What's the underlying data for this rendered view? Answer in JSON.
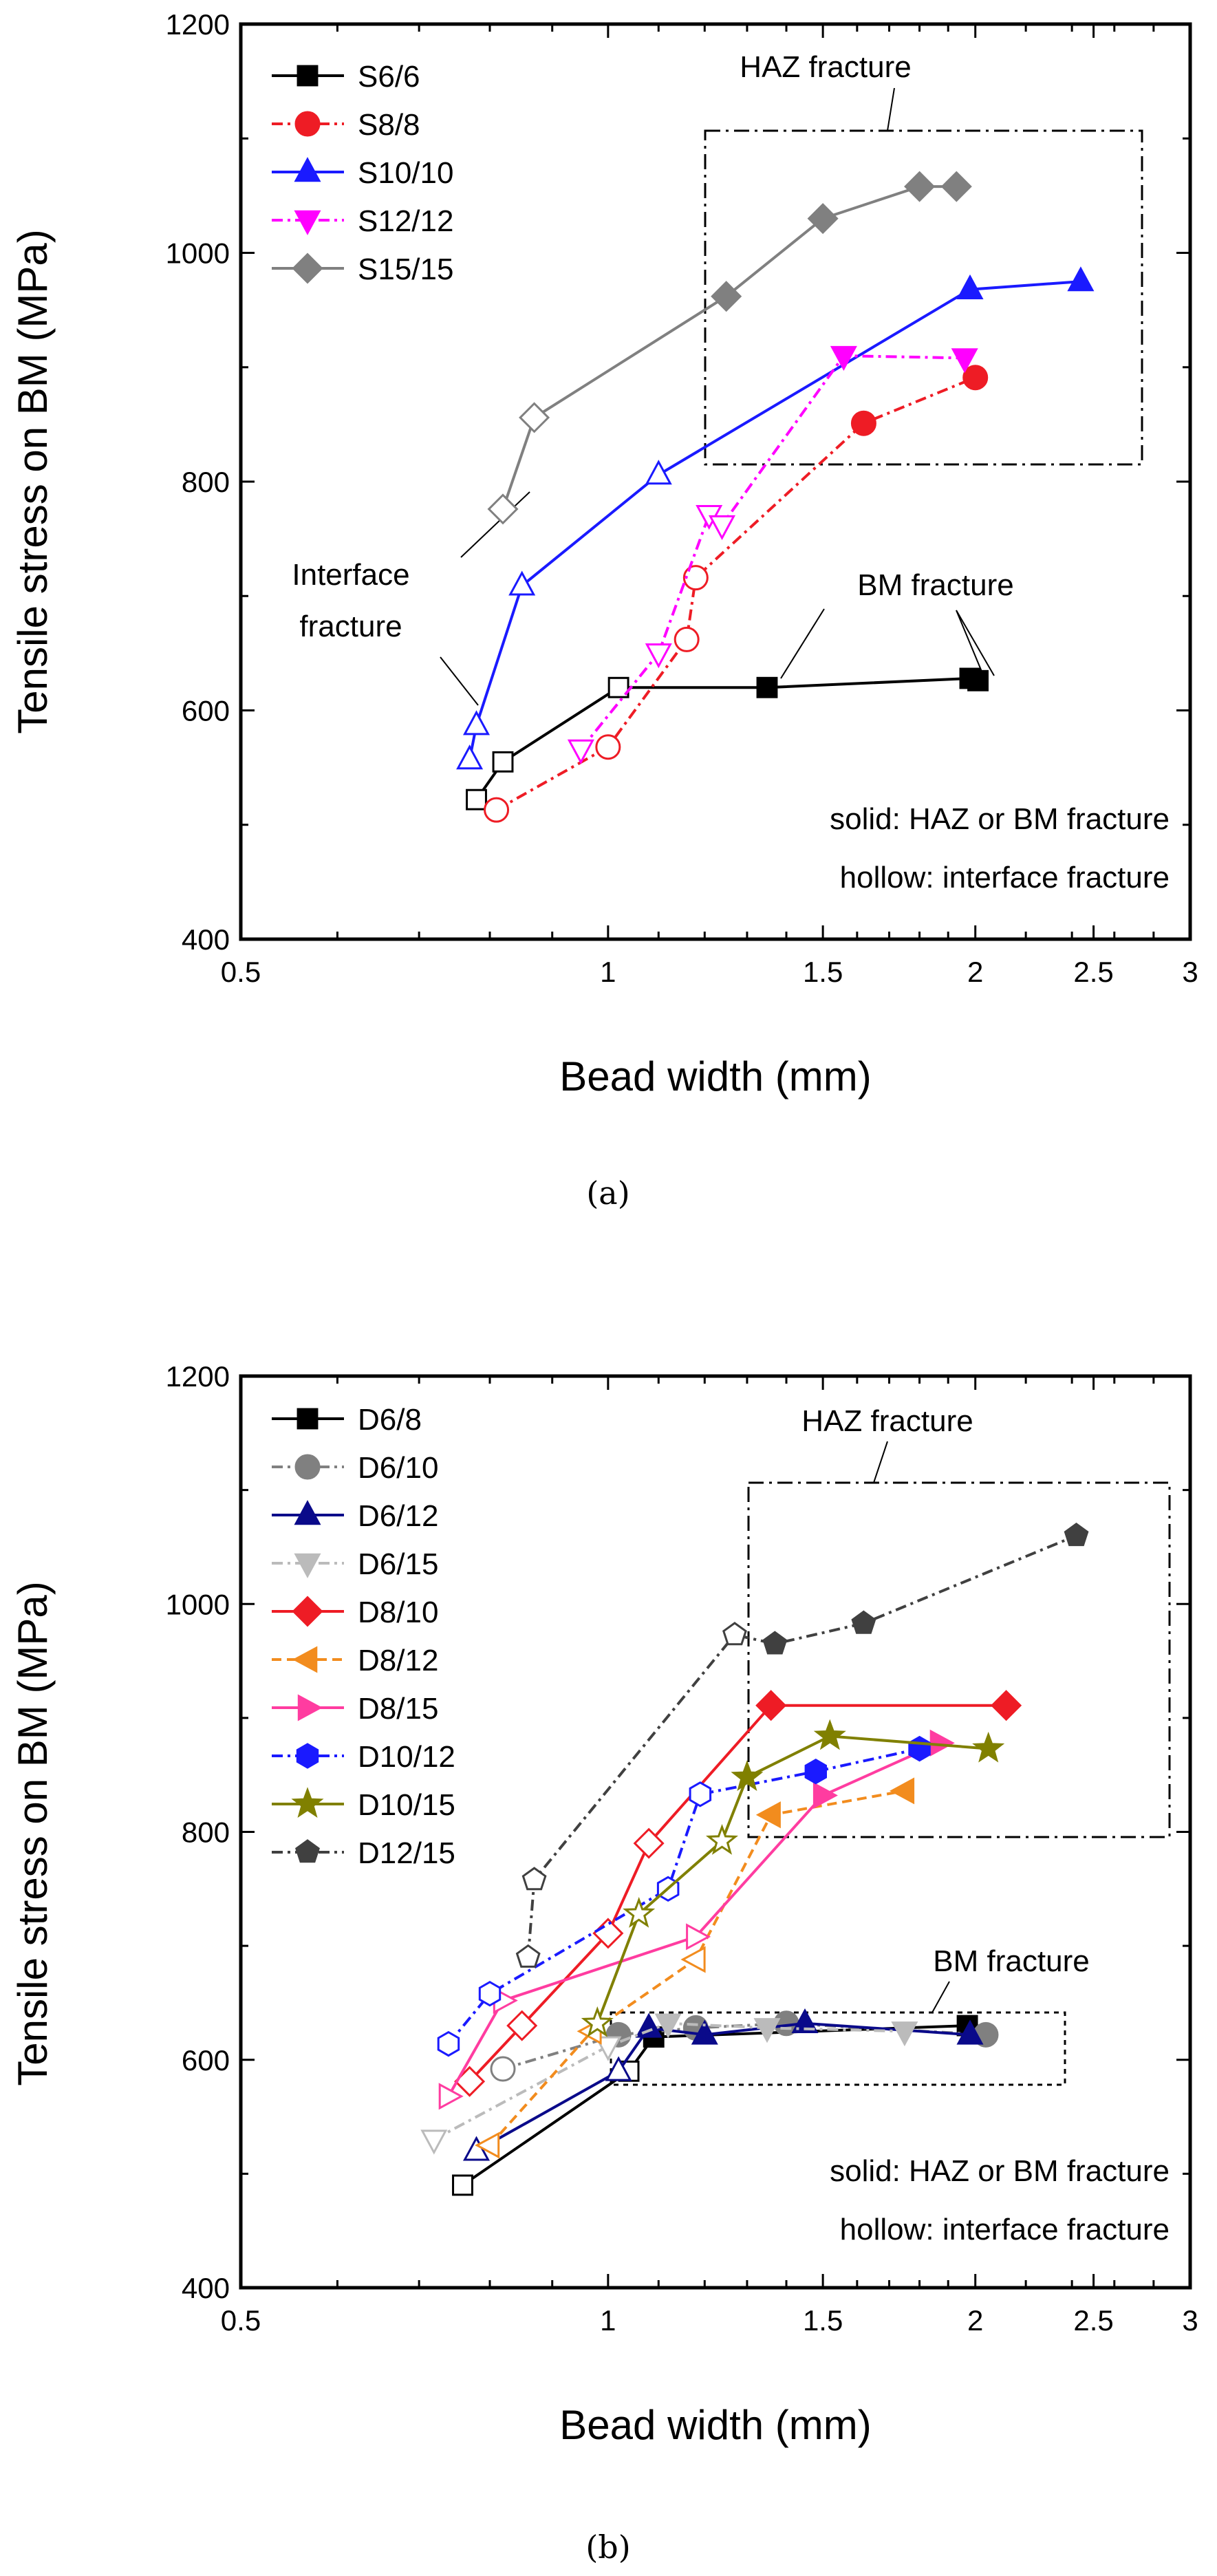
{
  "chart_data": [
    {
      "type": "line",
      "panel": "a",
      "caption": "(a)",
      "xlabel": "Bead width (mm)",
      "ylabel": "Tensile stress on BM (MPa)",
      "xscale": "log",
      "xlim": [
        0.5,
        3
      ],
      "ylim": [
        400,
        1200
      ],
      "xticks": [
        0.5,
        1,
        1.5,
        2,
        2.5,
        3
      ],
      "xtick_labels": [
        "0.5",
        "1",
        "1.5",
        "2",
        "2.5",
        "3"
      ],
      "yticks": [
        400,
        600,
        800,
        1000,
        1200
      ],
      "ytick_labels": [
        "400",
        "600",
        "800",
        "1000",
        "1200"
      ],
      "legend_position": "top-left",
      "series": [
        {
          "name": "S6/6",
          "color": "#000000",
          "marker": "square",
          "dash": "solid",
          "x": [
            0.78,
            0.82,
            1.02,
            1.35,
            1.98,
            2.01
          ],
          "y": [
            522,
            555,
            620,
            620,
            628,
            626
          ],
          "filled": [
            false,
            false,
            false,
            true,
            true,
            true
          ]
        },
        {
          "name": "S8/8",
          "color": "#ee1c25",
          "marker": "circle",
          "dash": "dashdot",
          "x": [
            0.81,
            1.0,
            1.16,
            1.18,
            1.62,
            2.0
          ],
          "y": [
            513,
            568,
            662,
            716,
            851,
            891
          ],
          "filled": [
            false,
            false,
            false,
            false,
            true,
            true
          ]
        },
        {
          "name": "S10/10",
          "color": "#1a1aff",
          "marker": "triangle-up",
          "dash": "solid",
          "x": [
            0.77,
            0.78,
            0.85,
            1.1,
            1.98,
            2.44
          ],
          "y": [
            557,
            587,
            709,
            806,
            968,
            975
          ],
          "filled": [
            false,
            false,
            false,
            false,
            true,
            true
          ]
        },
        {
          "name": "S12/12",
          "color": "#ff00ff",
          "marker": "triangle-down",
          "dash": "dashdot",
          "x": [
            0.95,
            1.1,
            1.21,
            1.24,
            1.56,
            1.96
          ],
          "y": [
            566,
            650,
            771,
            762,
            910,
            908
          ],
          "filled": [
            false,
            false,
            false,
            false,
            true,
            true
          ]
        },
        {
          "name": "S15/15",
          "color": "#808080",
          "marker": "diamond",
          "dash": "solid",
          "x": [
            0.82,
            0.87,
            1.25,
            1.5,
            1.8,
            1.93
          ],
          "y": [
            776,
            856,
            962,
            1030,
            1058,
            1058
          ],
          "filled": [
            false,
            false,
            true,
            true,
            true,
            true
          ]
        }
      ],
      "annotations": {
        "haz": "HAZ fracture",
        "bm": "BM fracture",
        "interface_line1": "Interface",
        "interface_line2": "fracture",
        "note1": "solid: HAZ or BM fracture",
        "note2": "hollow: interface fracture"
      }
    },
    {
      "type": "line",
      "panel": "b",
      "caption": "(b)",
      "xlabel": "Bead width (mm)",
      "ylabel": "Tensile stress on BM (MPa)",
      "xscale": "log",
      "xlim": [
        0.5,
        3
      ],
      "ylim": [
        400,
        1200
      ],
      "xticks": [
        0.5,
        1,
        1.5,
        2,
        2.5,
        3
      ],
      "xtick_labels": [
        "0.5",
        "1",
        "1.5",
        "2",
        "2.5",
        "3"
      ],
      "yticks": [
        400,
        600,
        800,
        1000,
        1200
      ],
      "ytick_labels": [
        "400",
        "600",
        "800",
        "1000",
        "1200"
      ],
      "legend_position": "top-left",
      "series": [
        {
          "name": "D6/8",
          "color": "#000000",
          "marker": "square",
          "dash": "solid",
          "x": [
            0.76,
            1.04,
            1.09,
            1.97
          ],
          "y": [
            490,
            590,
            620,
            630
          ],
          "filled": [
            false,
            false,
            true,
            true
          ]
        },
        {
          "name": "D6/10",
          "color": "#808080",
          "marker": "circle",
          "dash": "dashdot",
          "x": [
            0.82,
            1.02,
            1.18,
            1.4,
            2.04
          ],
          "y": [
            592,
            622,
            628,
            632,
            622
          ],
          "filled": [
            false,
            true,
            true,
            true,
            true
          ]
        },
        {
          "name": "D6/12",
          "color": "#0a0a8a",
          "marker": "triangle-up",
          "dash": "solid",
          "x": [
            0.78,
            1.02,
            1.08,
            1.2,
            1.45,
            1.98
          ],
          "y": [
            520,
            590,
            628,
            622,
            632,
            622
          ],
          "filled": [
            false,
            false,
            true,
            true,
            true,
            true
          ]
        },
        {
          "name": "D6/15",
          "color": "#bbbbbb",
          "marker": "triangle-down",
          "dash": "dashdot",
          "x": [
            0.72,
            1.0,
            1.12,
            1.35,
            1.75
          ],
          "y": [
            530,
            612,
            632,
            628,
            625
          ],
          "filled": [
            false,
            false,
            true,
            true,
            true
          ]
        },
        {
          "name": "D8/10",
          "color": "#ee1c25",
          "marker": "diamond",
          "dash": "solid",
          "x": [
            0.77,
            0.85,
            1.0,
            1.08,
            1.36,
            2.12
          ],
          "y": [
            581,
            630,
            711,
            790,
            911,
            911
          ],
          "filled": [
            false,
            false,
            false,
            false,
            true,
            true
          ]
        },
        {
          "name": "D8/12",
          "color": "#f28c1e",
          "marker": "triangle-left",
          "dash": "dash",
          "x": [
            0.8,
            0.97,
            1.18,
            1.36,
            1.75
          ],
          "y": [
            525,
            625,
            688,
            815,
            836
          ],
          "filled": [
            false,
            false,
            false,
            true,
            true
          ]
        },
        {
          "name": "D8/15",
          "color": "#ff3ca0",
          "marker": "triangle-right",
          "dash": "solid",
          "x": [
            0.74,
            0.82,
            1.18,
            1.5,
            1.87
          ],
          "y": [
            568,
            652,
            708,
            832,
            878
          ],
          "filled": [
            false,
            false,
            false,
            true,
            true
          ]
        },
        {
          "name": "D10/12",
          "color": "#1a1aff",
          "marker": "hexagon",
          "dash": "dashdot",
          "x": [
            0.74,
            0.8,
            1.12,
            1.19,
            1.48,
            1.8
          ],
          "y": [
            614,
            658,
            750,
            833,
            853,
            873
          ],
          "filled": [
            false,
            false,
            false,
            false,
            true,
            true
          ]
        },
        {
          "name": "D10/15",
          "color": "#808000",
          "marker": "star",
          "dash": "solid",
          "x": [
            0.98,
            1.06,
            1.24,
            1.3,
            1.52,
            2.05
          ],
          "y": [
            632,
            728,
            792,
            848,
            884,
            873
          ],
          "filled": [
            false,
            false,
            false,
            true,
            true,
            true
          ]
        },
        {
          "name": "D12/15",
          "color": "#404040",
          "marker": "pentagon",
          "dash": "dashdot",
          "x": [
            0.86,
            0.87,
            1.27,
            1.37,
            1.62,
            2.42
          ],
          "y": [
            690,
            758,
            973,
            965,
            983,
            1060
          ],
          "filled": [
            false,
            false,
            false,
            true,
            true,
            true
          ]
        }
      ],
      "annotations": {
        "haz": "HAZ fracture",
        "bm": "BM fracture",
        "note1": "solid: HAZ or BM fracture",
        "note2": "hollow: interface fracture"
      }
    }
  ]
}
